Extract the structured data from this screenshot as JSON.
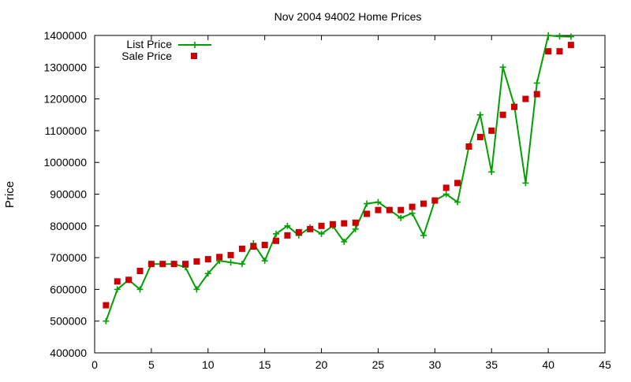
{
  "chart_data": {
    "type": "line",
    "title": "Nov 2004 94002 Home Prices",
    "xlabel": "",
    "ylabel": "Price",
    "xlim": [
      0,
      45
    ],
    "ylim": [
      400000,
      1400000
    ],
    "xticks": [
      0,
      5,
      10,
      15,
      20,
      25,
      30,
      35,
      40,
      45
    ],
    "yticks": [
      400000,
      500000,
      600000,
      700000,
      800000,
      900000,
      1000000,
      1100000,
      1200000,
      1300000,
      1400000
    ],
    "grid": false,
    "legend_position": "top-left",
    "series": [
      {
        "name": "List Price",
        "style": "linespoints",
        "marker": "plus",
        "color": "#00a000",
        "x": [
          1,
          2,
          3,
          4,
          5,
          6,
          7,
          8,
          9,
          10,
          11,
          12,
          13,
          14,
          15,
          16,
          17,
          18,
          19,
          20,
          21,
          22,
          23,
          24,
          25,
          26,
          27,
          28,
          29,
          30,
          31,
          32,
          33,
          34,
          35,
          36,
          37,
          38,
          39,
          40,
          41,
          42
        ],
        "y": [
          500000,
          600000,
          630000,
          600000,
          680000,
          680000,
          680000,
          670000,
          600000,
          650000,
          690000,
          685000,
          680000,
          745000,
          690000,
          775000,
          800000,
          770000,
          795000,
          775000,
          800000,
          750000,
          790000,
          870000,
          875000,
          850000,
          825000,
          840000,
          770000,
          880000,
          900000,
          875000,
          1050000,
          1150000,
          970000,
          1300000,
          1180000,
          935000,
          1250000,
          1400000,
          1397000,
          1396000
        ]
      },
      {
        "name": "Sale Price",
        "style": "points",
        "marker": "square",
        "color": "#cc0000",
        "x": [
          1,
          2,
          3,
          4,
          5,
          6,
          7,
          8,
          9,
          10,
          11,
          12,
          13,
          14,
          15,
          16,
          17,
          18,
          19,
          20,
          21,
          22,
          23,
          24,
          25,
          26,
          27,
          28,
          29,
          30,
          31,
          32,
          33,
          34,
          35,
          36,
          37,
          38,
          39,
          40,
          41,
          42
        ],
        "y": [
          550000,
          625000,
          630000,
          658000,
          680000,
          680000,
          680000,
          680000,
          688000,
          695000,
          702000,
          708000,
          728000,
          735000,
          740000,
          753000,
          770000,
          780000,
          790000,
          800000,
          805000,
          808000,
          810000,
          838000,
          850000,
          850000,
          850000,
          860000,
          870000,
          880000,
          920000,
          935000,
          1050000,
          1080000,
          1100000,
          1150000,
          1175000,
          1200000,
          1215000,
          1350000,
          1350000,
          1370000
        ]
      }
    ]
  }
}
